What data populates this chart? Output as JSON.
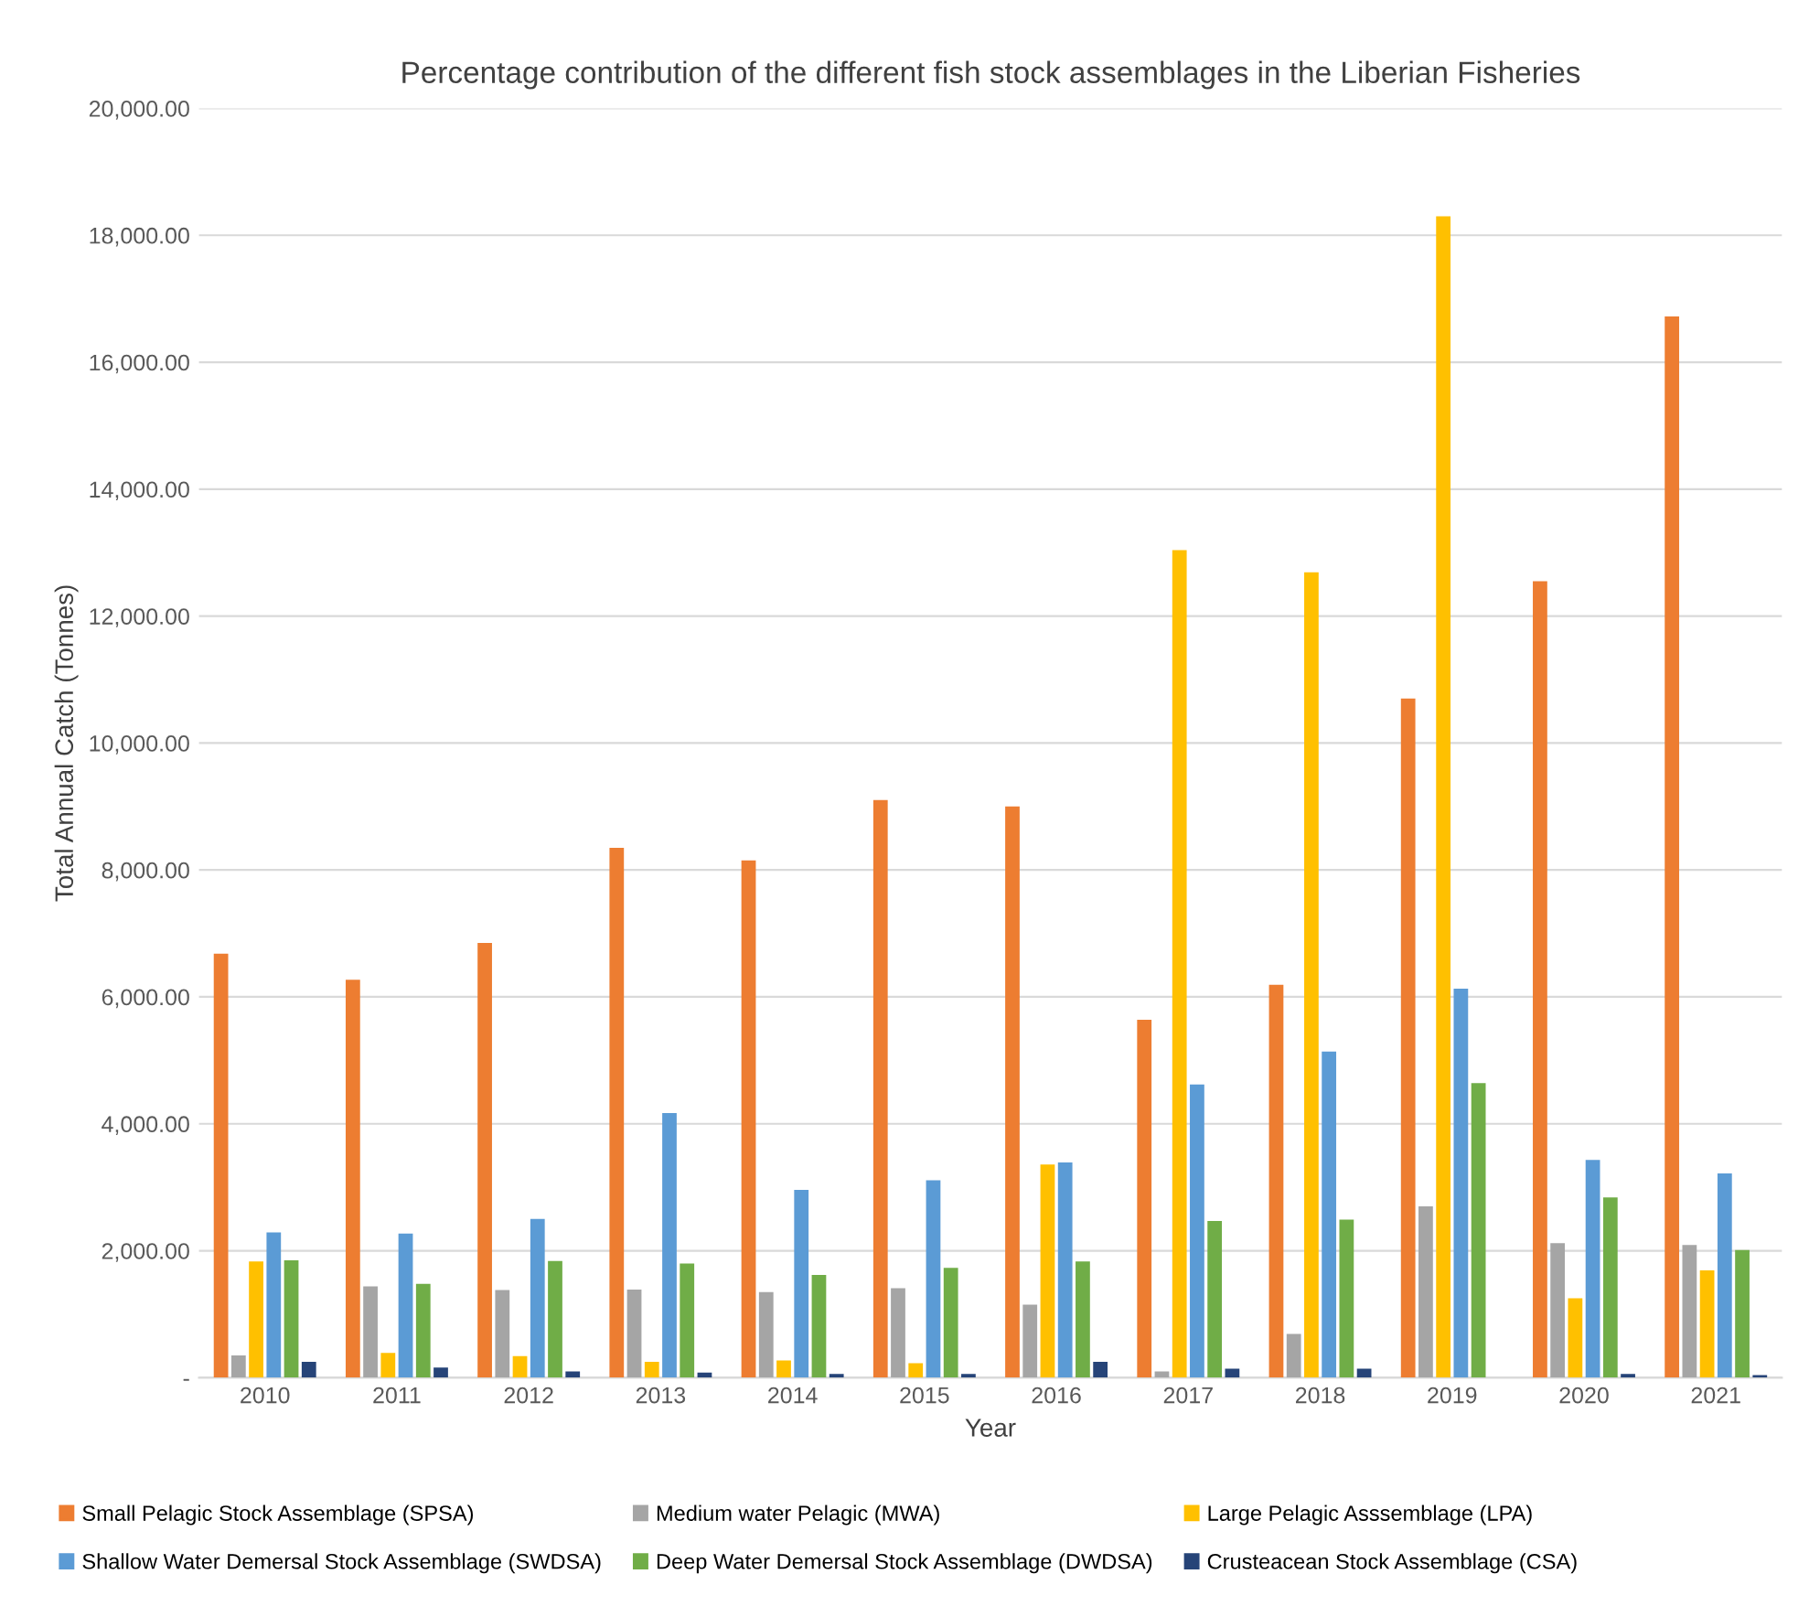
{
  "chart_data": {
    "type": "bar",
    "title": "Percentage contribution of the different fish stock assemblages in the Liberian Fisheries",
    "xlabel": "Year",
    "ylabel": "Total Annual Catch (Tonnes)",
    "categories": [
      "2010",
      "2011",
      "2012",
      "2013",
      "2014",
      "2015",
      "2016",
      "2017",
      "2018",
      "2019",
      "2020",
      "2021"
    ],
    "series": [
      {
        "name": "Small Pelagic Stock Assemblage (SPSA)",
        "color": "#ed7d31",
        "values": [
          6680,
          6270,
          6850,
          8350,
          8150,
          9100,
          9000,
          5640,
          6190,
          10700,
          12550,
          16720
        ]
      },
      {
        "name": "Medium water Pelagic (MWA)",
        "color": "#a5a5a5",
        "values": [
          350,
          1440,
          1380,
          1390,
          1350,
          1410,
          1150,
          100,
          690,
          2700,
          2120,
          2090
        ]
      },
      {
        "name": "Large Pelagic Asssemblage (LPA)",
        "color": "#ffc000",
        "values": [
          1830,
          390,
          340,
          250,
          270,
          230,
          3360,
          13040,
          12690,
          18300,
          1250,
          1690
        ]
      },
      {
        "name": "Shallow Water Demersal Stock Assemblage (SWDSA)",
        "color": "#5b9bd5",
        "values": [
          2290,
          2270,
          2500,
          4170,
          2960,
          3110,
          3390,
          4620,
          5140,
          6130,
          3430,
          3220
        ]
      },
      {
        "name": "Deep Water Demersal Stock Assemblage (DWDSA)",
        "color": "#70ad47",
        "values": [
          1850,
          1480,
          1840,
          1800,
          1620,
          1730,
          1830,
          2470,
          2490,
          4640,
          2840,
          2010
        ]
      },
      {
        "name": "Crusteacean Stock Assemblage (CSA)",
        "color": "#264478",
        "values": [
          250,
          160,
          100,
          80,
          60,
          60,
          250,
          140,
          140,
          0,
          60,
          40
        ]
      }
    ],
    "ylim": [
      0,
      20000
    ],
    "yticks": [
      {
        "value": 0,
        "label": "-"
      },
      {
        "value": 2000,
        "label": "2,000.00"
      },
      {
        "value": 4000,
        "label": "4,000.00"
      },
      {
        "value": 6000,
        "label": "6,000.00"
      },
      {
        "value": 8000,
        "label": "8,000.00"
      },
      {
        "value": 10000,
        "label": "10,000.00"
      },
      {
        "value": 12000,
        "label": "12,000.00"
      },
      {
        "value": 14000,
        "label": "14,000.00"
      },
      {
        "value": 16000,
        "label": "16,000.00"
      },
      {
        "value": 18000,
        "label": "18,000.00"
      },
      {
        "value": 20000,
        "label": "20,000.00"
      }
    ],
    "grid": "y",
    "legend": "bottom"
  }
}
